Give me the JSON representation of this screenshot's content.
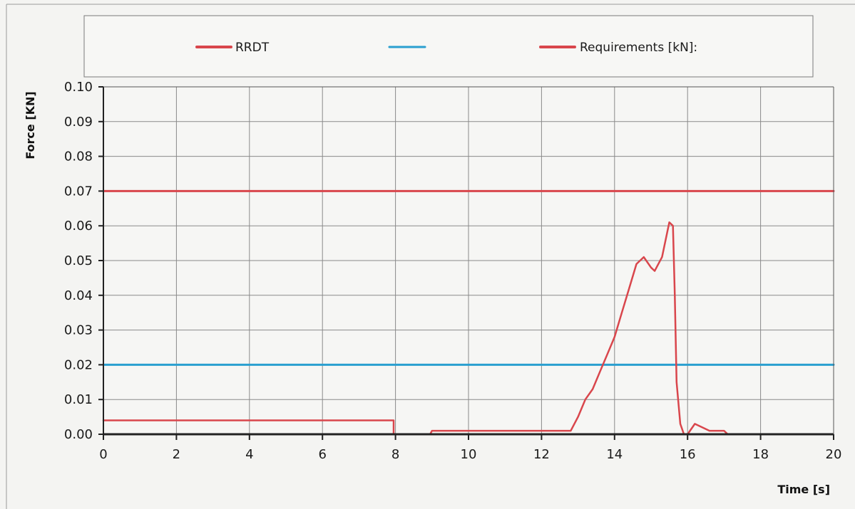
{
  "chart_data": {
    "type": "line",
    "xlabel": "Time [s]",
    "ylabel": "Force [KN]",
    "xlim": [
      0,
      20
    ],
    "ylim": [
      0,
      0.1
    ],
    "xticks": [
      0,
      2,
      4,
      6,
      8,
      10,
      12,
      14,
      16,
      18,
      20
    ],
    "yticks": [
      0.0,
      0.01,
      0.02,
      0.03,
      0.04,
      0.05,
      0.06,
      0.07,
      0.08,
      0.09,
      0.1
    ],
    "xtick_labels": [
      "0",
      "2",
      "4",
      "6",
      "8",
      "10",
      "12",
      "14",
      "16",
      "18",
      "20"
    ],
    "ytick_labels": [
      "0.00",
      "0.01",
      "0.02",
      "0.03",
      "0.04",
      "0.05",
      "0.06",
      "0.07",
      "0.08",
      "0.09",
      "0.10"
    ],
    "grid": true,
    "legend_position": "top",
    "legend": [
      {
        "label": "RRDT",
        "color": "#d9464c"
      },
      {
        "label": "",
        "color": "#2a9fd0"
      },
      {
        "label": "Requirements [kN]:",
        "color": "#d9464c"
      }
    ],
    "series": [
      {
        "name": "RRDT",
        "color": "#d9464c",
        "x": [
          0,
          1,
          2,
          3,
          4,
          5,
          6,
          7,
          7.95,
          7.95,
          8.0,
          8.95,
          9.0,
          10,
          11,
          12,
          12.8,
          13.0,
          13.2,
          13.4,
          13.6,
          13.8,
          14.0,
          14.2,
          14.4,
          14.6,
          14.8,
          15.0,
          15.1,
          15.3,
          15.5,
          15.6,
          15.65,
          15.7,
          15.8,
          15.9,
          16.0,
          16.2,
          16.4,
          16.6,
          16.8,
          17.0,
          17.1
        ],
        "y": [
          0.004,
          0.004,
          0.004,
          0.004,
          0.004,
          0.004,
          0.004,
          0.004,
          0.004,
          0.0,
          0.0,
          0.0,
          0.001,
          0.001,
          0.001,
          0.001,
          0.001,
          0.005,
          0.01,
          0.013,
          0.018,
          0.023,
          0.028,
          0.035,
          0.042,
          0.049,
          0.051,
          0.048,
          0.047,
          0.051,
          0.061,
          0.06,
          0.04,
          0.015,
          0.003,
          0.0,
          0.0,
          0.003,
          0.002,
          0.001,
          0.001,
          0.001,
          0.0
        ]
      },
      {
        "name": "",
        "color": "#2a9fd0",
        "x": [
          0,
          20
        ],
        "y": [
          0.02,
          0.02
        ]
      },
      {
        "name": "Requirements [kN]:",
        "color": "#d9464c",
        "x": [
          0,
          20
        ],
        "y": [
          0.07,
          0.07
        ]
      }
    ]
  }
}
